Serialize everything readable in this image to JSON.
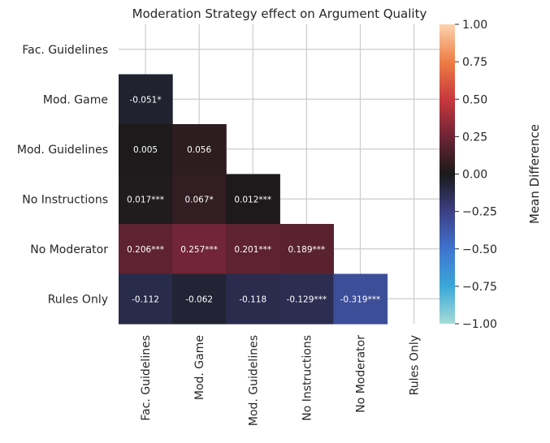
{
  "chart_data": {
    "type": "heatmap",
    "title": "Moderation Strategy effect on Argument Quality",
    "rows": [
      "Fac. Guidelines",
      "Mod. Game",
      "Mod. Guidelines",
      "No Instructions",
      "No Moderator",
      "Rules Only"
    ],
    "columns": [
      "Fac. Guidelines",
      "Mod. Game",
      "Mod. Guidelines",
      "No Instructions",
      "No Moderator",
      "Rules Only"
    ],
    "values": [
      [
        null,
        null,
        null,
        null,
        null,
        null
      ],
      [
        -0.051,
        null,
        null,
        null,
        null,
        null
      ],
      [
        0.005,
        0.056,
        null,
        null,
        null,
        null
      ],
      [
        0.017,
        0.067,
        0.012,
        null,
        null,
        null
      ],
      [
        0.206,
        0.257,
        0.201,
        0.189,
        null,
        null
      ],
      [
        -0.112,
        -0.062,
        -0.118,
        -0.129,
        -0.319,
        null
      ]
    ],
    "labels": [
      [
        null,
        null,
        null,
        null,
        null,
        null
      ],
      [
        "-0.051*",
        null,
        null,
        null,
        null,
        null
      ],
      [
        "0.005",
        "0.056",
        null,
        null,
        null,
        null
      ],
      [
        "0.017***",
        "0.067*",
        "0.012***",
        null,
        null,
        null
      ],
      [
        "0.206***",
        "0.257***",
        "0.201***",
        "0.189***",
        null,
        null
      ],
      [
        "-0.112",
        "-0.062",
        "-0.118",
        "-0.129***",
        "-0.319***",
        null
      ]
    ],
    "mask": "upper-triangle-including-diagonal",
    "colorbar": {
      "label": "Mean Difference",
      "vmin": -1.0,
      "vmax": 1.0,
      "ticks": [
        "1.00",
        "0.75",
        "0.50",
        "0.25",
        "0.00",
        "−0.25",
        "−0.50",
        "−0.75",
        "−1.00"
      ],
      "tick_values": [
        1.0,
        0.75,
        0.5,
        0.25,
        0.0,
        -0.25,
        -0.5,
        -0.75,
        -1.0
      ],
      "colormap": "icefire",
      "colormap_stops": [
        [
          -1.0,
          "#a6dcd6"
        ],
        [
          -0.75,
          "#3aa8d8"
        ],
        [
          -0.5,
          "#3f74cf"
        ],
        [
          -0.25,
          "#3c3f85"
        ],
        [
          0.0,
          "#1a1a1a"
        ],
        [
          0.25,
          "#6e2436"
        ],
        [
          0.5,
          "#c8383c"
        ],
        [
          0.75,
          "#ee7d45"
        ],
        [
          1.0,
          "#fcd3ad"
        ]
      ]
    },
    "grid": true,
    "legend": "colorbar-right"
  }
}
